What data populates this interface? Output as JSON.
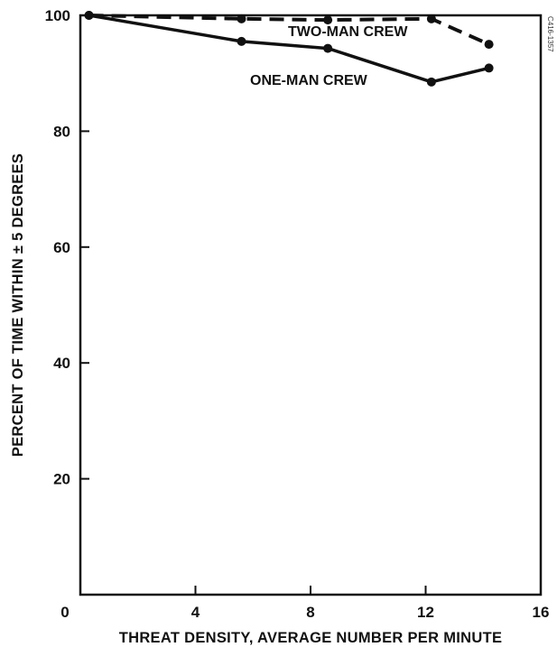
{
  "chart_data": {
    "type": "line",
    "xlabel": "THREAT DENSITY, AVERAGE NUMBER PER MINUTE",
    "ylabel": "PERCENT OF TIME WITHIN ± 5 DEGREES",
    "xlim": [
      0,
      16
    ],
    "ylim": [
      0,
      100
    ],
    "x_ticks": [
      "0",
      "4",
      "8",
      "12",
      "16"
    ],
    "y_ticks": [
      "20",
      "40",
      "60",
      "80",
      "100"
    ],
    "grid": false,
    "legend": "none (series labeled directly on plot)",
    "series": [
      {
        "name": "ONE-MAN CREW",
        "style": "solid",
        "x": [
          0.3,
          5.6,
          8.6,
          12.2,
          14.2
        ],
        "y": [
          100,
          95.5,
          94.3,
          88.5,
          90.9
        ]
      },
      {
        "name": "TWO-MAN CREW",
        "style": "dashed",
        "x": [
          0.3,
          5.6,
          8.6,
          12.2,
          14.2
        ],
        "y": [
          100,
          99.4,
          99.2,
          99.4,
          95
        ]
      }
    ],
    "annotations": [
      "C416-1357"
    ]
  },
  "colors": {
    "line": "#111111",
    "background": "#ffffff"
  }
}
